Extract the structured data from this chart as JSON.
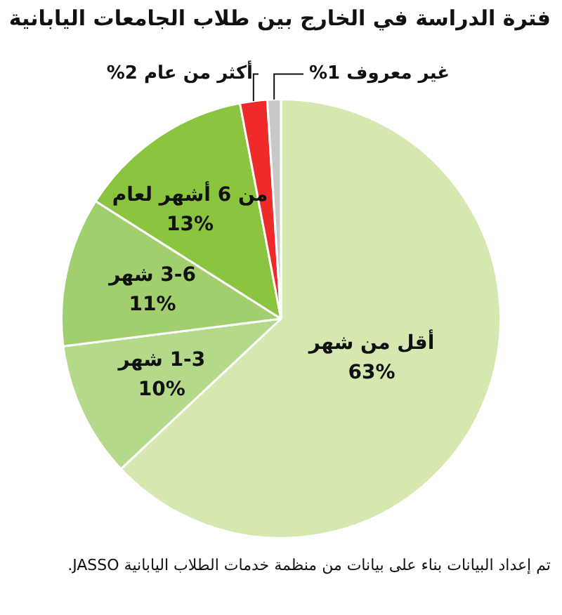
{
  "chart_data": {
    "type": "pie",
    "title": "فترة الدراسة في الخارج بين طلاب الجامعات اليابانية",
    "categories": [
      "أقل من شهر",
      "1-3 شهر",
      "3-6 شهر",
      "من 6 أشهر لعام",
      "أكثر من عام",
      "غير معروف"
    ],
    "values": [
      63,
      10,
      11,
      13,
      2,
      1
    ],
    "value_labels": [
      "63%",
      "10%",
      "11%",
      "13%",
      "2%",
      "1%"
    ],
    "colors": [
      "#d4e8b0",
      "#b5d98a",
      "#a2cf6e",
      "#8bc43f",
      "#ee2a2a",
      "#c8c8c8"
    ],
    "legend": false,
    "annotations": [
      "تم إعداد البيانات بناء على بيانات من منظمة خدمات الطلاب اليابانية JASSO."
    ]
  }
}
